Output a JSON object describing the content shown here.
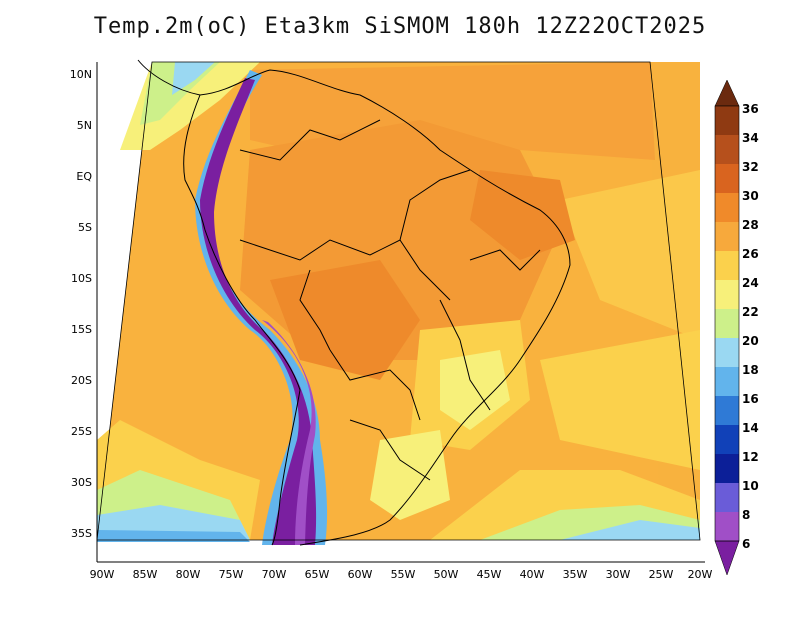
{
  "title": "Temp.2m(oC) Eta3km SiSMOM 180h 12Z22OCT2025",
  "latitude_ticks": [
    "10N",
    "5N",
    "EQ",
    "5S",
    "10S",
    "15S",
    "20S",
    "25S",
    "30S",
    "35S"
  ],
  "longitude_ticks": [
    "90W",
    "85W",
    "80W",
    "75W",
    "70W",
    "65W",
    "60W",
    "55W",
    "50W",
    "45W",
    "40W",
    "35W",
    "30W",
    "25W",
    "20W"
  ],
  "colorbar": {
    "labels": [
      "36",
      "34",
      "32",
      "30",
      "28",
      "26",
      "24",
      "22",
      "20",
      "18",
      "16",
      "14",
      "12",
      "10",
      "8",
      "6"
    ],
    "colors": [
      "#6b2a0f",
      "#8f3a12",
      "#b6501c",
      "#d9641f",
      "#f08a2a",
      "#f7a93c",
      "#fbd14c",
      "#f7f07a",
      "#cdf08a",
      "#9ad8f2",
      "#62b4ec",
      "#2f7ad6",
      "#1141b8",
      "#0c1f98",
      "#6a5cd8",
      "#a04fc7",
      "#7a1fa0"
    ]
  }
}
